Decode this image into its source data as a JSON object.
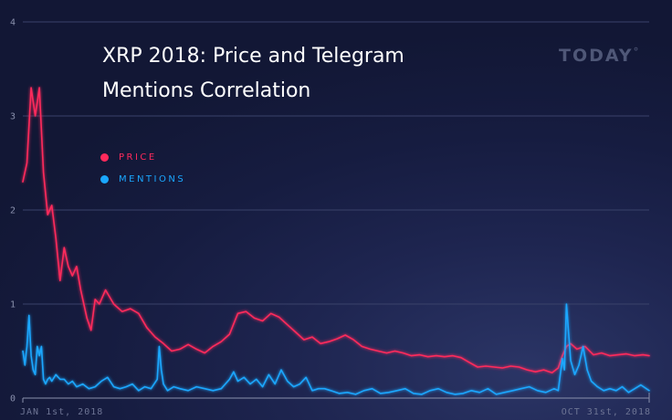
{
  "brand": {
    "name": "TODAY",
    "mark": "°"
  },
  "chart_data": {
    "type": "line",
    "title": "XRP 2018: Price and Telegram Mentions Correlation",
    "xlabel": "",
    "ylabel": "",
    "ylim": [
      0,
      4
    ],
    "yticks": [
      "0",
      "1",
      "2",
      "3",
      "4"
    ],
    "xtick_labels": [
      "JAN 1st, 2018",
      "OCT 31st, 2018"
    ],
    "grid": true,
    "legend_position": "top-left",
    "x_range": [
      "2018-01-01",
      "2018-10-31"
    ],
    "series": [
      {
        "name": "PRICE",
        "color": "#ff2a5c",
        "x": [
          "2018-01-01",
          "2018-01-03",
          "2018-01-05",
          "2018-01-07",
          "2018-01-09",
          "2018-01-11",
          "2018-01-13",
          "2018-01-15",
          "2018-01-17",
          "2018-01-19",
          "2018-01-21",
          "2018-01-23",
          "2018-01-25",
          "2018-01-27",
          "2018-01-29",
          "2018-02-01",
          "2018-02-03",
          "2018-02-05",
          "2018-02-07",
          "2018-02-10",
          "2018-02-14",
          "2018-02-18",
          "2018-02-22",
          "2018-02-26",
          "2018-03-02",
          "2018-03-06",
          "2018-03-10",
          "2018-03-14",
          "2018-03-18",
          "2018-03-22",
          "2018-03-26",
          "2018-03-30",
          "2018-04-03",
          "2018-04-07",
          "2018-04-11",
          "2018-04-15",
          "2018-04-19",
          "2018-04-23",
          "2018-04-27",
          "2018-05-01",
          "2018-05-05",
          "2018-05-09",
          "2018-05-13",
          "2018-05-17",
          "2018-05-21",
          "2018-05-25",
          "2018-05-29",
          "2018-06-02",
          "2018-06-06",
          "2018-06-10",
          "2018-06-14",
          "2018-06-18",
          "2018-06-22",
          "2018-06-26",
          "2018-06-30",
          "2018-07-04",
          "2018-07-08",
          "2018-07-12",
          "2018-07-16",
          "2018-07-20",
          "2018-07-24",
          "2018-07-28",
          "2018-08-01",
          "2018-08-05",
          "2018-08-09",
          "2018-08-13",
          "2018-08-17",
          "2018-08-21",
          "2018-08-25",
          "2018-08-29",
          "2018-09-02",
          "2018-09-06",
          "2018-09-10",
          "2018-09-14",
          "2018-09-17",
          "2018-09-19",
          "2018-09-21",
          "2018-09-23",
          "2018-09-26",
          "2018-09-30",
          "2018-10-04",
          "2018-10-08",
          "2018-10-12",
          "2018-10-16",
          "2018-10-20",
          "2018-10-24",
          "2018-10-28",
          "2018-10-31"
        ],
        "values": [
          2.3,
          2.5,
          3.3,
          3.0,
          3.3,
          2.4,
          1.95,
          2.05,
          1.7,
          1.25,
          1.6,
          1.4,
          1.3,
          1.4,
          1.15,
          0.85,
          0.72,
          1.05,
          1.0,
          1.15,
          1.0,
          0.92,
          0.95,
          0.9,
          0.75,
          0.65,
          0.58,
          0.5,
          0.52,
          0.57,
          0.52,
          0.48,
          0.55,
          0.6,
          0.68,
          0.9,
          0.92,
          0.85,
          0.82,
          0.9,
          0.86,
          0.78,
          0.7,
          0.62,
          0.65,
          0.58,
          0.6,
          0.63,
          0.67,
          0.62,
          0.55,
          0.52,
          0.5,
          0.48,
          0.5,
          0.48,
          0.45,
          0.46,
          0.44,
          0.45,
          0.44,
          0.45,
          0.43,
          0.38,
          0.33,
          0.34,
          0.33,
          0.32,
          0.34,
          0.33,
          0.3,
          0.28,
          0.3,
          0.27,
          0.32,
          0.45,
          0.55,
          0.58,
          0.52,
          0.55,
          0.46,
          0.48,
          0.45,
          0.46,
          0.47,
          0.45,
          0.46,
          0.45
        ]
      },
      {
        "name": "MENTIONS",
        "color": "#1aa7ff",
        "x": [
          "2018-01-01",
          "2018-01-02",
          "2018-01-03",
          "2018-01-04",
          "2018-01-05",
          "2018-01-06",
          "2018-01-07",
          "2018-01-08",
          "2018-01-09",
          "2018-01-10",
          "2018-01-11",
          "2018-01-12",
          "2018-01-13",
          "2018-01-14",
          "2018-01-15",
          "2018-01-17",
          "2018-01-19",
          "2018-01-21",
          "2018-01-23",
          "2018-01-25",
          "2018-01-27",
          "2018-01-30",
          "2018-02-02",
          "2018-02-05",
          "2018-02-08",
          "2018-02-11",
          "2018-02-14",
          "2018-02-17",
          "2018-02-20",
          "2018-02-23",
          "2018-02-26",
          "2018-03-01",
          "2018-03-04",
          "2018-03-07",
          "2018-03-08",
          "2018-03-09",
          "2018-03-10",
          "2018-03-12",
          "2018-03-15",
          "2018-03-18",
          "2018-03-22",
          "2018-03-26",
          "2018-03-30",
          "2018-04-03",
          "2018-04-07",
          "2018-04-11",
          "2018-04-13",
          "2018-04-15",
          "2018-04-18",
          "2018-04-21",
          "2018-04-24",
          "2018-04-27",
          "2018-04-30",
          "2018-05-03",
          "2018-05-06",
          "2018-05-09",
          "2018-05-12",
          "2018-05-15",
          "2018-05-18",
          "2018-05-21",
          "2018-05-24",
          "2018-05-27",
          "2018-05-30",
          "2018-06-03",
          "2018-06-07",
          "2018-06-11",
          "2018-06-15",
          "2018-06-19",
          "2018-06-23",
          "2018-06-27",
          "2018-07-01",
          "2018-07-05",
          "2018-07-09",
          "2018-07-13",
          "2018-07-17",
          "2018-07-21",
          "2018-07-25",
          "2018-07-29",
          "2018-08-02",
          "2018-08-06",
          "2018-08-10",
          "2018-08-14",
          "2018-08-18",
          "2018-08-22",
          "2018-08-26",
          "2018-08-30",
          "2018-09-03",
          "2018-09-07",
          "2018-09-11",
          "2018-09-15",
          "2018-09-17",
          "2018-09-19",
          "2018-09-20",
          "2018-09-21",
          "2018-09-23",
          "2018-09-25",
          "2018-09-27",
          "2018-09-29",
          "2018-10-01",
          "2018-10-03",
          "2018-10-06",
          "2018-10-09",
          "2018-10-12",
          "2018-10-15",
          "2018-10-18",
          "2018-10-21",
          "2018-10-24",
          "2018-10-27",
          "2018-10-31"
        ],
        "values": [
          0.5,
          0.35,
          0.55,
          0.88,
          0.45,
          0.3,
          0.25,
          0.55,
          0.45,
          0.55,
          0.2,
          0.15,
          0.2,
          0.22,
          0.18,
          0.25,
          0.2,
          0.2,
          0.15,
          0.18,
          0.12,
          0.15,
          0.1,
          0.12,
          0.18,
          0.22,
          0.12,
          0.1,
          0.12,
          0.15,
          0.08,
          0.12,
          0.1,
          0.2,
          0.55,
          0.3,
          0.15,
          0.08,
          0.12,
          0.1,
          0.08,
          0.12,
          0.1,
          0.08,
          0.1,
          0.2,
          0.28,
          0.18,
          0.22,
          0.15,
          0.2,
          0.12,
          0.25,
          0.15,
          0.3,
          0.18,
          0.12,
          0.15,
          0.22,
          0.08,
          0.1,
          0.1,
          0.08,
          0.05,
          0.06,
          0.04,
          0.08,
          0.1,
          0.05,
          0.06,
          0.08,
          0.1,
          0.05,
          0.04,
          0.08,
          0.1,
          0.06,
          0.04,
          0.05,
          0.08,
          0.06,
          0.1,
          0.04,
          0.06,
          0.08,
          0.1,
          0.12,
          0.08,
          0.06,
          0.1,
          0.08,
          0.42,
          0.3,
          1.0,
          0.4,
          0.25,
          0.35,
          0.55,
          0.3,
          0.18,
          0.12,
          0.08,
          0.1,
          0.08,
          0.12,
          0.06,
          0.1,
          0.14,
          0.08
        ]
      }
    ]
  }
}
